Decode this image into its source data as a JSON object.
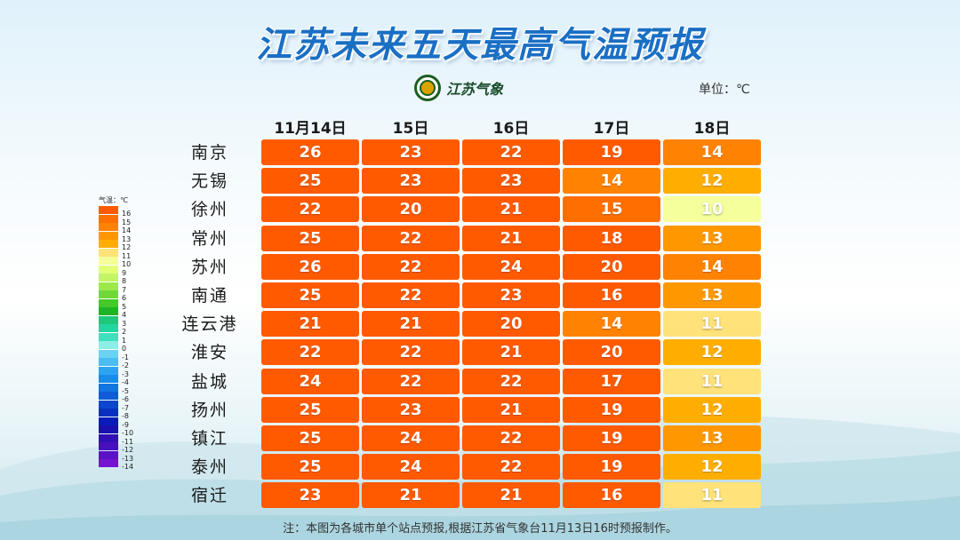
{
  "title": "江苏未来五天最高气温预报",
  "logo_text": "江苏气象",
  "unit_label": "单位：℃",
  "note": "注：本图为各城市单个站点预报,根据江苏省气象台11月13日16时预报制作。",
  "legend": {
    "title": "气温：℃",
    "items": [
      {
        "label": "16",
        "color": "#ff5a00"
      },
      {
        "label": "15",
        "color": "#ff6e00"
      },
      {
        "label": "14",
        "color": "#ff8200"
      },
      {
        "label": "13",
        "color": "#ff9800"
      },
      {
        "label": "12",
        "color": "#ffae00"
      },
      {
        "label": "11",
        "color": "#ffe27a"
      },
      {
        "label": "10",
        "color": "#f5ff9c"
      },
      {
        "label": "9",
        "color": "#e3ff7a"
      },
      {
        "label": "8",
        "color": "#c4f562"
      },
      {
        "label": "7",
        "color": "#9ce84a"
      },
      {
        "label": "6",
        "color": "#6fd838"
      },
      {
        "label": "5",
        "color": "#44c82a"
      },
      {
        "label": "4",
        "color": "#1eb424"
      },
      {
        "label": "3",
        "color": "#1ec87a"
      },
      {
        "label": "2",
        "color": "#22d6a2"
      },
      {
        "label": "1",
        "color": "#40e0bc"
      },
      {
        "label": "0",
        "color": "#8ceee6"
      },
      {
        "label": "-1",
        "color": "#6cd2f4"
      },
      {
        "label": "-2",
        "color": "#4cbcf2"
      },
      {
        "label": "-3",
        "color": "#2ea4ee"
      },
      {
        "label": "-4",
        "color": "#1a8ce8"
      },
      {
        "label": "-5",
        "color": "#1474e0"
      },
      {
        "label": "-6",
        "color": "#105cd6"
      },
      {
        "label": "-7",
        "color": "#0c46cc"
      },
      {
        "label": "-8",
        "color": "#0a30c2"
      },
      {
        "label": "-9",
        "color": "#0a1cb8"
      },
      {
        "label": "-10",
        "color": "#1a10b0"
      },
      {
        "label": "-11",
        "color": "#3010b4"
      },
      {
        "label": "-12",
        "color": "#4610bc"
      },
      {
        "label": "-13",
        "color": "#5c12c4"
      },
      {
        "label": "-14",
        "color": "#7414d0"
      }
    ]
  },
  "chart_data": {
    "type": "table",
    "title": "江苏未来五天最高气温预报",
    "columns": [
      "11月14日",
      "15日",
      "16日",
      "17日",
      "18日"
    ],
    "rows": [
      {
        "city": "南京",
        "values": [
          26,
          23,
          22,
          19,
          14
        ]
      },
      {
        "city": "无锡",
        "values": [
          25,
          23,
          23,
          14,
          12
        ]
      },
      {
        "city": "徐州",
        "values": [
          22,
          20,
          21,
          15,
          10
        ]
      },
      {
        "city": "常州",
        "values": [
          25,
          22,
          21,
          18,
          13
        ]
      },
      {
        "city": "苏州",
        "values": [
          26,
          22,
          24,
          20,
          14
        ]
      },
      {
        "city": "南通",
        "values": [
          25,
          22,
          23,
          16,
          13
        ]
      },
      {
        "city": "连云港",
        "values": [
          21,
          21,
          20,
          14,
          11
        ]
      },
      {
        "city": "淮安",
        "values": [
          22,
          22,
          21,
          20,
          12
        ]
      },
      {
        "city": "盐城",
        "values": [
          24,
          22,
          22,
          17,
          11
        ]
      },
      {
        "city": "扬州",
        "values": [
          25,
          23,
          21,
          19,
          12
        ]
      },
      {
        "city": "镇江",
        "values": [
          25,
          24,
          22,
          19,
          13
        ]
      },
      {
        "city": "泰州",
        "values": [
          25,
          24,
          22,
          19,
          12
        ]
      },
      {
        "city": "宿迁",
        "values": [
          23,
          21,
          21,
          16,
          11
        ]
      }
    ]
  }
}
